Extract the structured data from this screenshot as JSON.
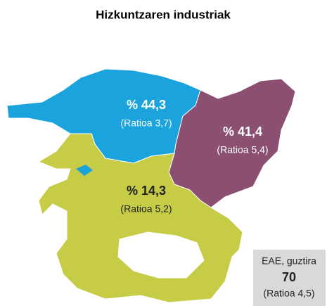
{
  "title": "Hizkuntzaren industriak",
  "regions": [
    {
      "label": "% 44,3",
      "ratio": "(Ratioa 3,7)",
      "color": "#1aa3dc"
    },
    {
      "label": "% 41,4",
      "ratio": "(Ratioa 5,4)",
      "color": "#8b4f72"
    },
    {
      "label": "% 14,3",
      "ratio": "(Ratioa 5,2)",
      "color": "#c6cc45"
    }
  ],
  "total": {
    "caption": "EAE, guztira",
    "value": "70",
    "ratio": "(Ratioa 4,5)"
  }
}
